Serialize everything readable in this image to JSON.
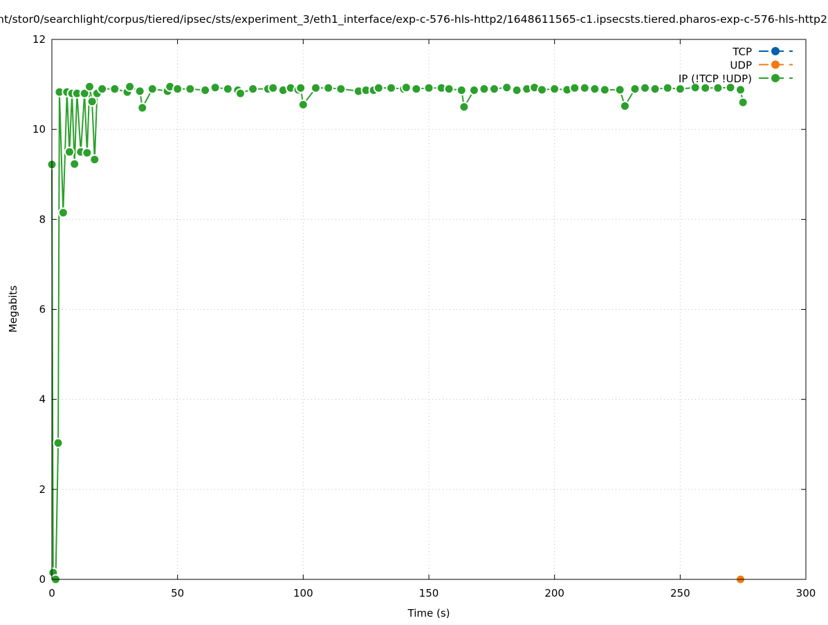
{
  "chart_data": {
    "type": "line",
    "title": "nt/stor0/searchlight/corpus/tiered/ipsec/sts/experiment_3/eth1_interface/exp-c-576-hls-http2/1648611565-c1.ipsecsts.tiered.pharos-exp-c-576-hls-http2.",
    "xlabel": "Time (s)",
    "ylabel": "Megabits",
    "xlim": [
      0,
      300
    ],
    "ylim": [
      0,
      12
    ],
    "xticks": [
      0,
      50,
      100,
      150,
      200,
      250,
      300
    ],
    "yticks": [
      0,
      2,
      4,
      6,
      8,
      10,
      12
    ],
    "grid": true,
    "legend_placement": "top-right",
    "series": [
      {
        "name": "TCP",
        "color": "#0060ad",
        "points": []
      },
      {
        "name": "UDP",
        "color": "#f07b10",
        "points": [
          [
            274,
            0
          ]
        ]
      },
      {
        "name": "IP (!TCP  !UDP)",
        "color": "#2ca02c",
        "points": [
          [
            0,
            9.22
          ],
          [
            0.5,
            0.15
          ],
          [
            1.5,
            0
          ],
          [
            2.5,
            3.03
          ],
          [
            3,
            10.83
          ],
          [
            4.5,
            8.15
          ],
          [
            6,
            10.83
          ],
          [
            7,
            9.5
          ],
          [
            8,
            10.8
          ],
          [
            9,
            9.23
          ],
          [
            10,
            10.8
          ],
          [
            11.5,
            9.5
          ],
          [
            13,
            10.8
          ],
          [
            14,
            9.48
          ],
          [
            15,
            10.95
          ],
          [
            16,
            10.62
          ],
          [
            17,
            9.33
          ],
          [
            18,
            10.8
          ],
          [
            20,
            10.9
          ],
          [
            25,
            10.9
          ],
          [
            30,
            10.83
          ],
          [
            31,
            10.95
          ],
          [
            35,
            10.85
          ],
          [
            36,
            10.48
          ],
          [
            40,
            10.9
          ],
          [
            46,
            10.85
          ],
          [
            47,
            10.95
          ],
          [
            50,
            10.9
          ],
          [
            55,
            10.9
          ],
          [
            61,
            10.87
          ],
          [
            65,
            10.93
          ],
          [
            70,
            10.9
          ],
          [
            74,
            10.87
          ],
          [
            75,
            10.8
          ],
          [
            80,
            10.9
          ],
          [
            86,
            10.9
          ],
          [
            88,
            10.92
          ],
          [
            92,
            10.87
          ],
          [
            95,
            10.92
          ],
          [
            98,
            10.88
          ],
          [
            99,
            10.92
          ],
          [
            100,
            10.55
          ],
          [
            105,
            10.92
          ],
          [
            110,
            10.92
          ],
          [
            115,
            10.9
          ],
          [
            122,
            10.85
          ],
          [
            125,
            10.87
          ],
          [
            128,
            10.87
          ],
          [
            130,
            10.92
          ],
          [
            135,
            10.92
          ],
          [
            140,
            10.9
          ],
          [
            141,
            10.93
          ],
          [
            145,
            10.9
          ],
          [
            150,
            10.92
          ],
          [
            155,
            10.92
          ],
          [
            158,
            10.9
          ],
          [
            163,
            10.87
          ],
          [
            164,
            10.5
          ],
          [
            168,
            10.87
          ],
          [
            172,
            10.9
          ],
          [
            176,
            10.9
          ],
          [
            181,
            10.93
          ],
          [
            185,
            10.87
          ],
          [
            189,
            10.9
          ],
          [
            192,
            10.93
          ],
          [
            195,
            10.88
          ],
          [
            200,
            10.9
          ],
          [
            205,
            10.88
          ],
          [
            208,
            10.92
          ],
          [
            212,
            10.92
          ],
          [
            216,
            10.9
          ],
          [
            220,
            10.88
          ],
          [
            226,
            10.88
          ],
          [
            228,
            10.52
          ],
          [
            232,
            10.9
          ],
          [
            236,
            10.92
          ],
          [
            240,
            10.9
          ],
          [
            245,
            10.92
          ],
          [
            250,
            10.9
          ],
          [
            256,
            10.93
          ],
          [
            260,
            10.92
          ],
          [
            265,
            10.92
          ],
          [
            270,
            10.93
          ],
          [
            274,
            10.88
          ],
          [
            275,
            10.6
          ]
        ]
      }
    ]
  }
}
